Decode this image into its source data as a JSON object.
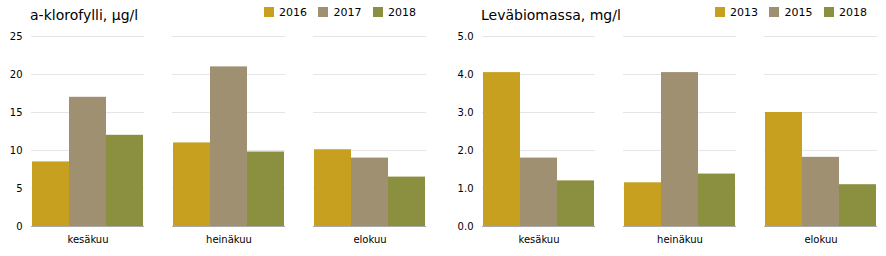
{
  "chart_data": [
    {
      "type": "bar",
      "title": "a-klorofylli, µg/l",
      "categories": [
        "kesäkuu",
        "heinäkuu",
        "elokuu"
      ],
      "series": [
        {
          "name": "2016",
          "color": "#C8A020",
          "values": [
            8.5,
            11.0,
            10.1
          ]
        },
        {
          "name": "2017",
          "color": "#9E9070",
          "values": [
            17.0,
            21.0,
            9.0
          ]
        },
        {
          "name": "2018",
          "color": "#8A9040",
          "values": [
            12.0,
            9.8,
            6.5
          ]
        }
      ],
      "ylim": [
        0,
        25
      ],
      "yticks": [
        0,
        5,
        10,
        15,
        20,
        25
      ],
      "grid": true,
      "legend": "upper right"
    },
    {
      "type": "bar",
      "title": "Leväbiomassa, mg/l",
      "categories": [
        "kesäkuu",
        "heinäkuu",
        "elokuu"
      ],
      "series": [
        {
          "name": "2013",
          "color": "#C8A020",
          "values": [
            4.05,
            1.15,
            3.0
          ]
        },
        {
          "name": "2015",
          "color": "#9E9070",
          "values": [
            1.8,
            4.05,
            1.82
          ]
        },
        {
          "name": "2018",
          "color": "#8A9040",
          "values": [
            1.2,
            1.38,
            1.1
          ]
        }
      ],
      "ylim": [
        0,
        5
      ],
      "yticks": [
        0,
        1,
        2,
        3,
        4,
        5
      ],
      "grid": true,
      "legend": "upper right"
    }
  ]
}
